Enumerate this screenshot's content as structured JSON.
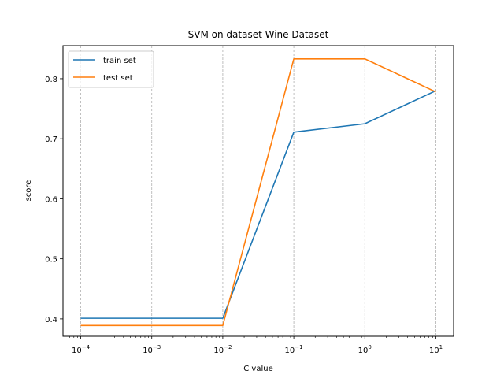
{
  "chart_data": {
    "type": "line",
    "title": "SVM on dataset Wine Dataset",
    "xlabel": "C value",
    "ylabel": "score",
    "xscale": "log",
    "x": [
      0.0001,
      0.001,
      0.01,
      0.1,
      1,
      10
    ],
    "xtick_labels": [
      {
        "base": "10",
        "exp": "−4"
      },
      {
        "base": "10",
        "exp": "−3"
      },
      {
        "base": "10",
        "exp": "−2"
      },
      {
        "base": "10",
        "exp": "−1"
      },
      {
        "base": "10",
        "exp": "0"
      },
      {
        "base": "10",
        "exp": "1"
      }
    ],
    "yticks": [
      0.4,
      0.5,
      0.6,
      0.7,
      0.8
    ],
    "ytick_labels": [
      "0.4",
      "0.5",
      "0.6",
      "0.7",
      "0.8"
    ],
    "ylim": [
      0.371,
      0.855
    ],
    "grid": "vertical dashed at major x ticks",
    "legend_position": "top-left",
    "series": [
      {
        "name": "train set",
        "color": "#1f77b4",
        "values": [
          0.401,
          0.401,
          0.401,
          0.711,
          0.725,
          0.78
        ]
      },
      {
        "name": "test set",
        "color": "#ff7f0e",
        "values": [
          0.389,
          0.389,
          0.389,
          0.833,
          0.833,
          0.778
        ]
      }
    ]
  }
}
